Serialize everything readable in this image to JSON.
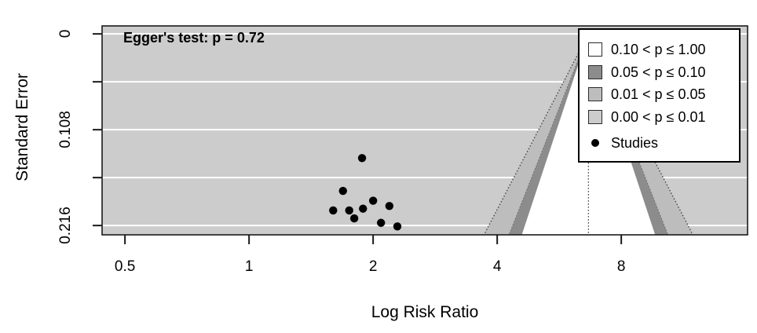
{
  "figure": {
    "egger_label": "Egger's test: p = 0.72",
    "xlabel": "Log Risk Ratio",
    "ylabel": "Standard Error"
  },
  "legend": {
    "items": [
      {
        "type": "box",
        "swatch": "#ffffff",
        "label": "0.10 < p ≤ 1.00"
      },
      {
        "type": "box",
        "swatch": "#8c8c8c",
        "label": "0.05 < p ≤ 0.10"
      },
      {
        "type": "box",
        "swatch": "#bdbdbd",
        "label": "0.01 < p ≤ 0.05"
      },
      {
        "type": "box",
        "swatch": "#cccccc",
        "label": "0.00 < p ≤ 0.01"
      },
      {
        "type": "point",
        "swatch": "#000000",
        "label": "Studies"
      }
    ]
  },
  "chart_data": {
    "type": "scatter",
    "subtype": "contour-enhanced-funnel-plot",
    "title": "",
    "annotation": "Egger's test: p = 0.72",
    "xlabel": "Log Risk Ratio",
    "ylabel": "Standard Error",
    "x_scale": "log2",
    "grid": true,
    "legend_position": "top-right",
    "xlim": [
      0.44,
      16.2
    ],
    "se_lim": [
      -0.009,
      0.2265
    ],
    "x_ticks": [
      {
        "value": 0.5,
        "label": "0.5"
      },
      {
        "value": 1,
        "label": "1"
      },
      {
        "value": 2,
        "label": "2"
      },
      {
        "value": 4,
        "label": "4"
      },
      {
        "value": 8,
        "label": "8"
      }
    ],
    "y_ticks": [
      {
        "value": 0,
        "label": "0"
      },
      {
        "value": 0.054,
        "label": ""
      },
      {
        "value": 0.108,
        "label": "0.108"
      },
      {
        "value": 0.162,
        "label": ""
      },
      {
        "value": 0.216,
        "label": "0.216"
      }
    ],
    "studies": [
      {
        "x": 1.88,
        "se": 0.14
      },
      {
        "x": 1.69,
        "se": 0.177
      },
      {
        "x": 2.0,
        "se": 0.188
      },
      {
        "x": 1.6,
        "se": 0.199
      },
      {
        "x": 1.75,
        "se": 0.199
      },
      {
        "x": 1.89,
        "se": 0.197
      },
      {
        "x": 2.19,
        "se": 0.194
      },
      {
        "x": 1.8,
        "se": 0.208
      },
      {
        "x": 2.09,
        "se": 0.213
      },
      {
        "x": 2.29,
        "se": 0.217
      }
    ],
    "funnel": {
      "center": 6.66,
      "contour_z": [
        1.645,
        1.96,
        2.576
      ],
      "contour_p": [
        "0.10",
        "0.05",
        "0.01"
      ]
    },
    "colors": {
      "plot_bg": "#cccccc",
      "band_p005_p010": "#8c8c8c",
      "band_p001_p005": "#bdbdbd",
      "band_p000_p001": "#cccccc",
      "funnel_interior": "#ffffff",
      "gridline": "#ffffff",
      "point": "#000000",
      "frame": "#1a1a1a",
      "dotted_line": "#3c3c3c"
    }
  }
}
